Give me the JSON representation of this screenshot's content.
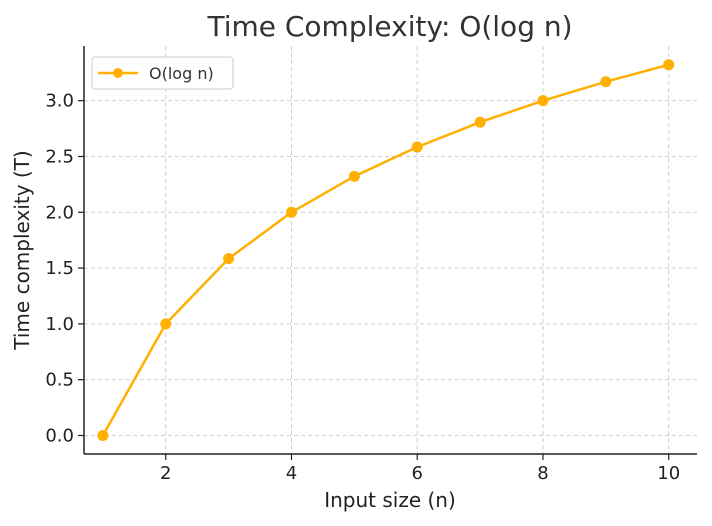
{
  "chart_data": {
    "type": "line",
    "title": "Time Complexity: O(log n)",
    "xlabel": "Input size (n)",
    "ylabel": "Time complexity (T)",
    "xlim": [
      0.7,
      10.45
    ],
    "ylim": [
      -0.166,
      3.49
    ],
    "xticks": [
      2,
      4,
      6,
      8,
      10
    ],
    "yticks": [
      0.0,
      0.5,
      1.0,
      1.5,
      2.0,
      2.5,
      3.0
    ],
    "xtick_labels": [
      "2",
      "4",
      "6",
      "8",
      "10"
    ],
    "ytick_labels": [
      "0.0",
      "0.5",
      "1.0",
      "1.5",
      "2.0",
      "2.5",
      "3.0"
    ],
    "grid": true,
    "legend": "top-left",
    "series": [
      {
        "name": "O(log n)",
        "color": "#FFB000",
        "marker": "circle",
        "x": [
          1,
          2,
          3,
          4,
          5,
          6,
          7,
          8,
          9,
          10
        ],
        "y": [
          0.0,
          1.0,
          1.585,
          2.0,
          2.322,
          2.585,
          2.807,
          3.0,
          3.17,
          3.322
        ]
      }
    ]
  }
}
